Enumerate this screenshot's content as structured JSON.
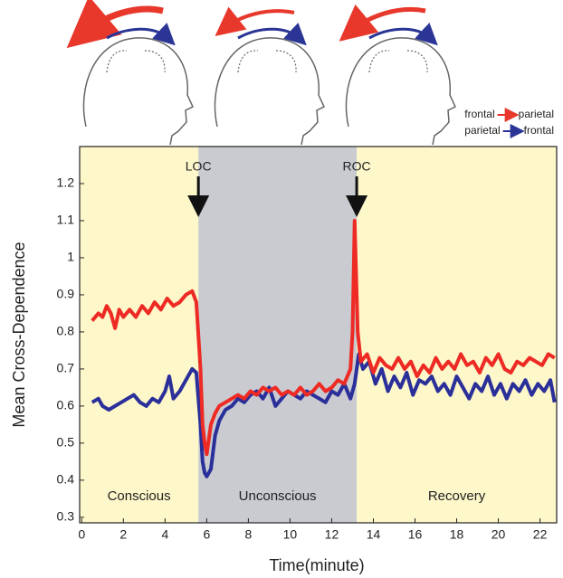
{
  "chart_data": {
    "type": "line",
    "x_label": "Time(minute)",
    "y_label": "Mean Cross-Dependence",
    "xlim": [
      -0.1,
      22.8
    ],
    "ylim": [
      0.285,
      1.3
    ],
    "xticks": [
      0,
      2,
      4,
      6,
      8,
      10,
      12,
      14,
      16,
      18,
      20,
      22
    ],
    "yticks": [
      0.3,
      0.4,
      0.5,
      0.6,
      0.7,
      0.8,
      0.9,
      1,
      1.1,
      1.2
    ],
    "grid": false,
    "legend": "upper right",
    "regions": [
      {
        "label": "Conscious",
        "end": 5.6,
        "color": "#fdf7c9"
      },
      {
        "label": "Unconscious",
        "start": 5.6,
        "end": 13.2,
        "color": "#c9cbd0"
      },
      {
        "label": "Recovery",
        "start": 13.2,
        "color": "#fdf7c9"
      }
    ],
    "annotations": [
      {
        "label": "LOC",
        "x": 5.6
      },
      {
        "label": "ROC",
        "x": 13.2
      }
    ],
    "series": [
      {
        "name": "frontal",
        "target": "parietal",
        "color": "#ee2a24",
        "x": [
          0.5,
          0.8,
          1.0,
          1.2,
          1.4,
          1.6,
          1.8,
          2.0,
          2.3,
          2.6,
          2.9,
          3.2,
          3.5,
          3.8,
          4.1,
          4.4,
          4.7,
          5.0,
          5.3,
          5.5,
          5.7,
          5.8,
          5.9,
          6.0,
          6.2,
          6.4,
          6.6,
          6.9,
          7.2,
          7.5,
          7.8,
          8.1,
          8.4,
          8.7,
          9.0,
          9.3,
          9.6,
          9.9,
          10.2,
          10.5,
          10.8,
          11.1,
          11.4,
          11.7,
          12.0,
          12.3,
          12.6,
          12.9,
          13.0,
          13.1,
          13.25,
          13.4,
          13.7,
          14.0,
          14.3,
          14.6,
          14.9,
          15.2,
          15.5,
          15.8,
          16.1,
          16.4,
          16.7,
          17.0,
          17.3,
          17.6,
          17.9,
          18.2,
          18.5,
          18.8,
          19.1,
          19.4,
          19.7,
          20.0,
          20.3,
          20.6,
          20.9,
          21.2,
          21.5,
          21.8,
          22.1,
          22.4,
          22.7
        ],
        "values": [
          0.83,
          0.85,
          0.84,
          0.87,
          0.85,
          0.81,
          0.86,
          0.84,
          0.86,
          0.84,
          0.87,
          0.85,
          0.88,
          0.86,
          0.89,
          0.87,
          0.88,
          0.9,
          0.91,
          0.88,
          0.7,
          0.55,
          0.5,
          0.47,
          0.55,
          0.58,
          0.6,
          0.61,
          0.62,
          0.63,
          0.62,
          0.64,
          0.63,
          0.65,
          0.64,
          0.65,
          0.63,
          0.64,
          0.63,
          0.65,
          0.63,
          0.64,
          0.66,
          0.64,
          0.65,
          0.67,
          0.66,
          0.7,
          0.8,
          1.1,
          0.8,
          0.72,
          0.74,
          0.69,
          0.73,
          0.71,
          0.7,
          0.73,
          0.7,
          0.72,
          0.68,
          0.71,
          0.69,
          0.73,
          0.7,
          0.72,
          0.7,
          0.74,
          0.71,
          0.72,
          0.69,
          0.73,
          0.71,
          0.74,
          0.7,
          0.69,
          0.72,
          0.71,
          0.73,
          0.72,
          0.71,
          0.74,
          0.73
        ]
      },
      {
        "name": "parietal",
        "target": "frontal",
        "color": "#2a2f9a",
        "x": [
          0.5,
          0.8,
          1.0,
          1.3,
          1.6,
          1.9,
          2.2,
          2.5,
          2.8,
          3.1,
          3.4,
          3.7,
          4.0,
          4.2,
          4.4,
          4.7,
          5.0,
          5.3,
          5.5,
          5.7,
          5.8,
          5.9,
          6.0,
          6.2,
          6.4,
          6.6,
          6.9,
          7.2,
          7.5,
          7.8,
          8.1,
          8.4,
          8.7,
          9.0,
          9.3,
          9.6,
          9.9,
          10.2,
          10.5,
          10.8,
          11.1,
          11.4,
          11.7,
          12.0,
          12.3,
          12.6,
          12.9,
          13.1,
          13.3,
          13.5,
          13.8,
          14.1,
          14.4,
          14.7,
          15.0,
          15.3,
          15.6,
          15.9,
          16.2,
          16.5,
          16.8,
          17.1,
          17.4,
          17.7,
          18.0,
          18.3,
          18.6,
          18.9,
          19.2,
          19.5,
          19.8,
          20.1,
          20.4,
          20.7,
          21.0,
          21.3,
          21.6,
          21.9,
          22.2,
          22.5,
          22.7
        ],
        "values": [
          0.61,
          0.62,
          0.6,
          0.59,
          0.6,
          0.61,
          0.62,
          0.63,
          0.61,
          0.6,
          0.62,
          0.61,
          0.64,
          0.68,
          0.62,
          0.64,
          0.67,
          0.7,
          0.69,
          0.55,
          0.45,
          0.42,
          0.41,
          0.43,
          0.52,
          0.56,
          0.59,
          0.6,
          0.62,
          0.61,
          0.63,
          0.64,
          0.62,
          0.65,
          0.6,
          0.62,
          0.64,
          0.63,
          0.62,
          0.64,
          0.63,
          0.62,
          0.61,
          0.64,
          0.63,
          0.66,
          0.62,
          0.66,
          0.74,
          0.7,
          0.72,
          0.66,
          0.7,
          0.64,
          0.68,
          0.65,
          0.69,
          0.63,
          0.67,
          0.66,
          0.68,
          0.64,
          0.66,
          0.63,
          0.68,
          0.65,
          0.62,
          0.66,
          0.64,
          0.68,
          0.63,
          0.66,
          0.62,
          0.66,
          0.64,
          0.67,
          0.63,
          0.66,
          0.64,
          0.67,
          0.61
        ]
      }
    ]
  }
}
